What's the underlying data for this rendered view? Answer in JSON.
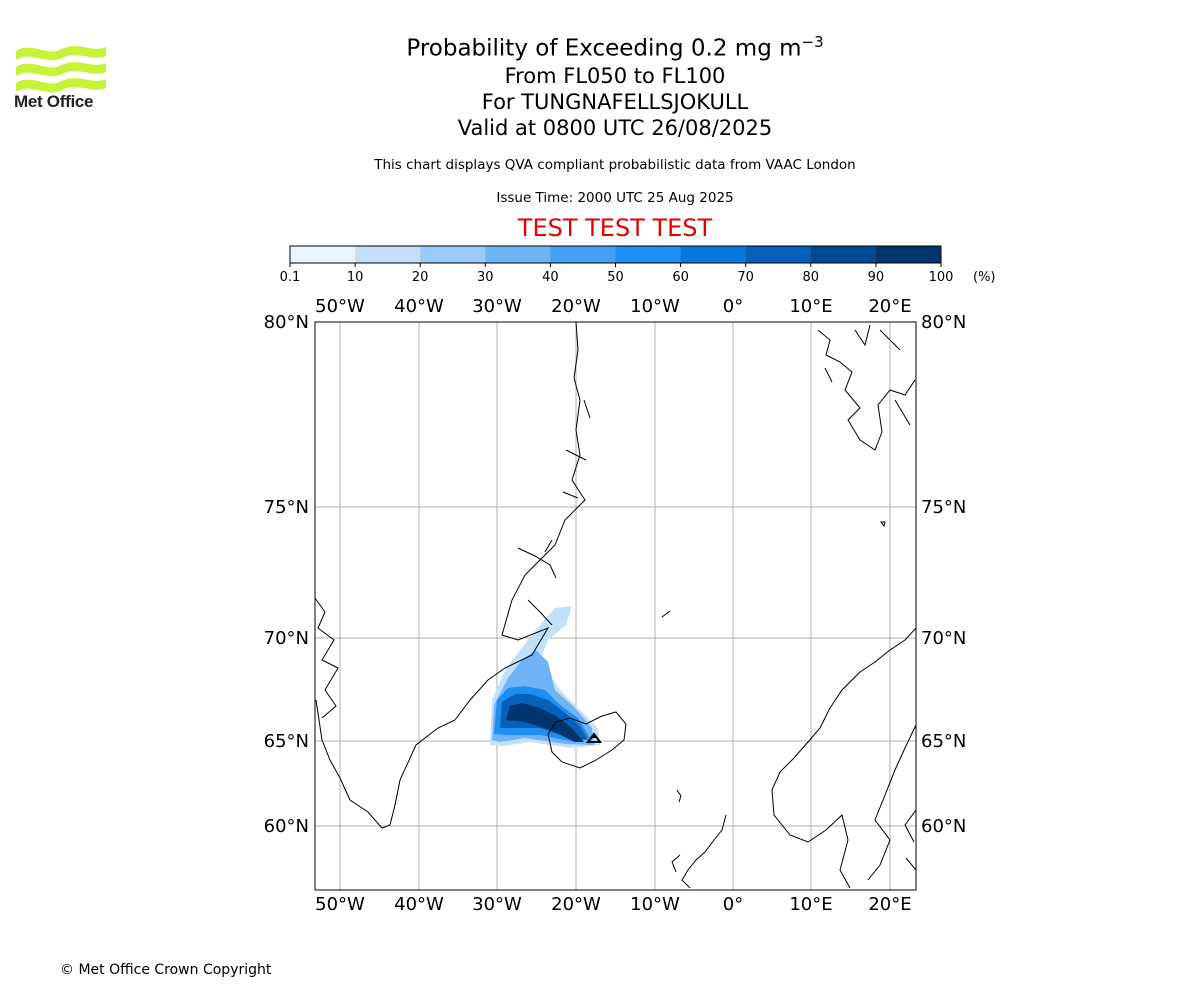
{
  "header": {
    "logo_text": "Met Office",
    "title_main": "Probability of Exceeding 0.2 mg m",
    "title_exp": "−3",
    "level_range": "From FL050 to FL100",
    "volcano": "For TUNGNAFELLSJOKULL",
    "valid_time": "Valid at 0800 UTC 26/08/2025",
    "compliance_note": "This chart displays QVA compliant probabilistic data from VAAC London",
    "issue_time": "Issue Time: 2000 UTC 25 Aug 2025",
    "test_banner": "TEST TEST TEST"
  },
  "colorbar": {
    "ticks": [
      "0.1",
      "10",
      "20",
      "30",
      "40",
      "50",
      "60",
      "70",
      "80",
      "90",
      "100"
    ],
    "unit": "(%)",
    "colors": [
      "#eaf4fe",
      "#c3e0fb",
      "#9bccf9",
      "#6fb4f7",
      "#43a0f5",
      "#1e8ef0",
      "#0a77dc",
      "#0560b9",
      "#024993",
      "#01336c"
    ]
  },
  "map": {
    "lon_labels": [
      "50°W",
      "40°W",
      "30°W",
      "20°W",
      "10°W",
      "0°",
      "10°E",
      "20°E"
    ],
    "lat_labels": [
      "80°N",
      "75°N",
      "70°N",
      "65°N",
      "60°N"
    ],
    "gridline_color": "#b0b0b0",
    "plume_levels_percent": [
      10,
      30,
      50,
      70,
      90
    ]
  },
  "footer": {
    "copyright": "© Met Office Crown Copyright"
  }
}
